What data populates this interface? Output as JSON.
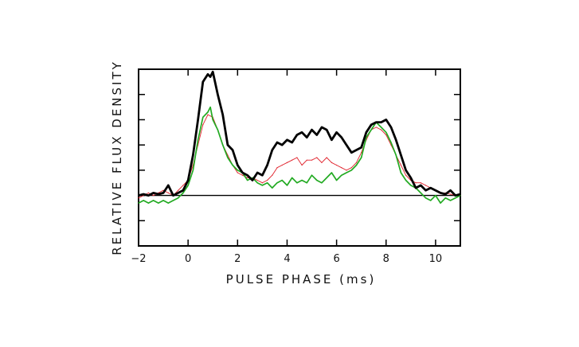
{
  "chart_data": {
    "type": "line",
    "xlabel": "PULSE PHASE (ms)",
    "ylabel": "RELATIVE FLUX DENSITY",
    "xlim": [
      -2,
      11
    ],
    "ylim": [
      -2,
      5
    ],
    "x_ticks": [
      -2,
      0,
      2,
      4,
      6,
      8,
      10
    ],
    "y_ticks_unlabeled": [
      -2,
      -1,
      0,
      1,
      2,
      3,
      4,
      5
    ],
    "baseline": 0,
    "grid": false,
    "series": [
      {
        "color": "#000000",
        "line": "thick",
        "x": [
          -2,
          -1.8,
          -1.6,
          -1.4,
          -1.2,
          -1.0,
          -0.8,
          -0.6,
          -0.4,
          -0.2,
          0.0,
          0.2,
          0.4,
          0.6,
          0.8,
          0.9,
          1.0,
          1.2,
          1.4,
          1.6,
          1.8,
          2.0,
          2.2,
          2.4,
          2.6,
          2.8,
          3.0,
          3.2,
          3.4,
          3.6,
          3.8,
          4.0,
          4.2,
          4.4,
          4.6,
          4.8,
          5.0,
          5.2,
          5.4,
          5.6,
          5.8,
          6.0,
          6.2,
          6.4,
          6.6,
          6.8,
          7.0,
          7.2,
          7.4,
          7.6,
          7.8,
          8.0,
          8.2,
          8.4,
          8.6,
          8.8,
          9.0,
          9.2,
          9.4,
          9.6,
          9.8,
          10.0,
          10.2,
          10.4,
          10.6,
          10.8,
          11.0
        ],
        "y": [
          0.0,
          0.05,
          0.0,
          0.1,
          0.05,
          0.1,
          0.4,
          0.0,
          0.1,
          0.2,
          0.6,
          1.6,
          3.0,
          4.5,
          4.8,
          4.7,
          4.9,
          4.0,
          3.2,
          2.0,
          1.8,
          1.2,
          0.9,
          0.8,
          0.6,
          0.9,
          0.8,
          1.2,
          1.8,
          2.1,
          2.0,
          2.2,
          2.1,
          2.4,
          2.5,
          2.3,
          2.6,
          2.4,
          2.7,
          2.6,
          2.2,
          2.5,
          2.3,
          2.0,
          1.7,
          1.8,
          1.9,
          2.5,
          2.8,
          2.9,
          2.9,
          3.0,
          2.7,
          2.2,
          1.6,
          1.0,
          0.7,
          0.3,
          0.4,
          0.2,
          0.3,
          0.2,
          0.1,
          0.05,
          0.2,
          0.0,
          0.05
        ]
      },
      {
        "color": "#e0202a",
        "line": "thin",
        "x": [
          -2,
          -1.8,
          -1.6,
          -1.4,
          -1.2,
          -1.0,
          -0.8,
          -0.6,
          -0.4,
          -0.2,
          0.0,
          0.2,
          0.4,
          0.6,
          0.8,
          1.0,
          1.2,
          1.4,
          1.6,
          1.8,
          2.0,
          2.2,
          2.4,
          2.6,
          2.8,
          3.0,
          3.2,
          3.4,
          3.6,
          3.8,
          4.0,
          4.2,
          4.4,
          4.6,
          4.8,
          5.0,
          5.2,
          5.4,
          5.6,
          5.8,
          6.0,
          6.2,
          6.4,
          6.6,
          6.8,
          7.0,
          7.2,
          7.4,
          7.6,
          7.8,
          8.0,
          8.2,
          8.4,
          8.6,
          8.8,
          9.0,
          9.2,
          9.4,
          9.6,
          9.8,
          10.0,
          10.2,
          10.4,
          10.6,
          10.8,
          11.0
        ],
        "y": [
          -0.1,
          0.0,
          0.1,
          0.0,
          0.1,
          0.2,
          0.1,
          0.0,
          0.2,
          0.4,
          0.6,
          1.2,
          2.0,
          2.8,
          3.2,
          3.1,
          2.6,
          2.0,
          1.6,
          1.2,
          0.9,
          0.8,
          0.7,
          0.7,
          0.6,
          0.5,
          0.6,
          0.8,
          1.1,
          1.2,
          1.3,
          1.4,
          1.5,
          1.2,
          1.4,
          1.4,
          1.5,
          1.3,
          1.5,
          1.3,
          1.2,
          1.1,
          1.0,
          1.1,
          1.3,
          1.7,
          2.2,
          2.6,
          2.7,
          2.6,
          2.4,
          2.0,
          1.6,
          1.2,
          0.8,
          0.6,
          0.5,
          0.5,
          0.4,
          0.3,
          0.2,
          0.1,
          0.1,
          0.05,
          0.0,
          0.0
        ]
      },
      {
        "color": "#22aa22",
        "line": "medium",
        "x": [
          -2,
          -1.8,
          -1.6,
          -1.4,
          -1.2,
          -1.0,
          -0.8,
          -0.6,
          -0.4,
          -0.2,
          0.0,
          0.2,
          0.4,
          0.6,
          0.8,
          0.9,
          1.0,
          1.2,
          1.4,
          1.6,
          1.8,
          2.0,
          2.2,
          2.4,
          2.6,
          2.8,
          3.0,
          3.2,
          3.4,
          3.6,
          3.8,
          4.0,
          4.2,
          4.4,
          4.6,
          4.8,
          5.0,
          5.2,
          5.4,
          5.6,
          5.8,
          6.0,
          6.2,
          6.4,
          6.6,
          6.8,
          7.0,
          7.2,
          7.4,
          7.6,
          7.8,
          8.0,
          8.2,
          8.4,
          8.6,
          8.8,
          9.0,
          9.2,
          9.4,
          9.6,
          9.8,
          10.0,
          10.2,
          10.4,
          10.6,
          10.8,
          11.0
        ],
        "y": [
          -0.3,
          -0.2,
          -0.3,
          -0.2,
          -0.3,
          -0.2,
          -0.3,
          -0.2,
          -0.1,
          0.1,
          0.4,
          1.0,
          2.2,
          3.1,
          3.3,
          3.5,
          3.0,
          2.6,
          2.0,
          1.5,
          1.2,
          1.0,
          0.9,
          0.6,
          0.7,
          0.5,
          0.4,
          0.5,
          0.3,
          0.5,
          0.6,
          0.4,
          0.7,
          0.5,
          0.6,
          0.5,
          0.8,
          0.6,
          0.5,
          0.7,
          0.9,
          0.6,
          0.8,
          0.9,
          1.0,
          1.2,
          1.5,
          2.3,
          2.6,
          2.9,
          2.7,
          2.5,
          2.1,
          1.6,
          0.9,
          0.6,
          0.4,
          0.3,
          0.1,
          -0.1,
          -0.2,
          0.0,
          -0.3,
          -0.1,
          -0.2,
          -0.1,
          0.0
        ]
      }
    ]
  }
}
